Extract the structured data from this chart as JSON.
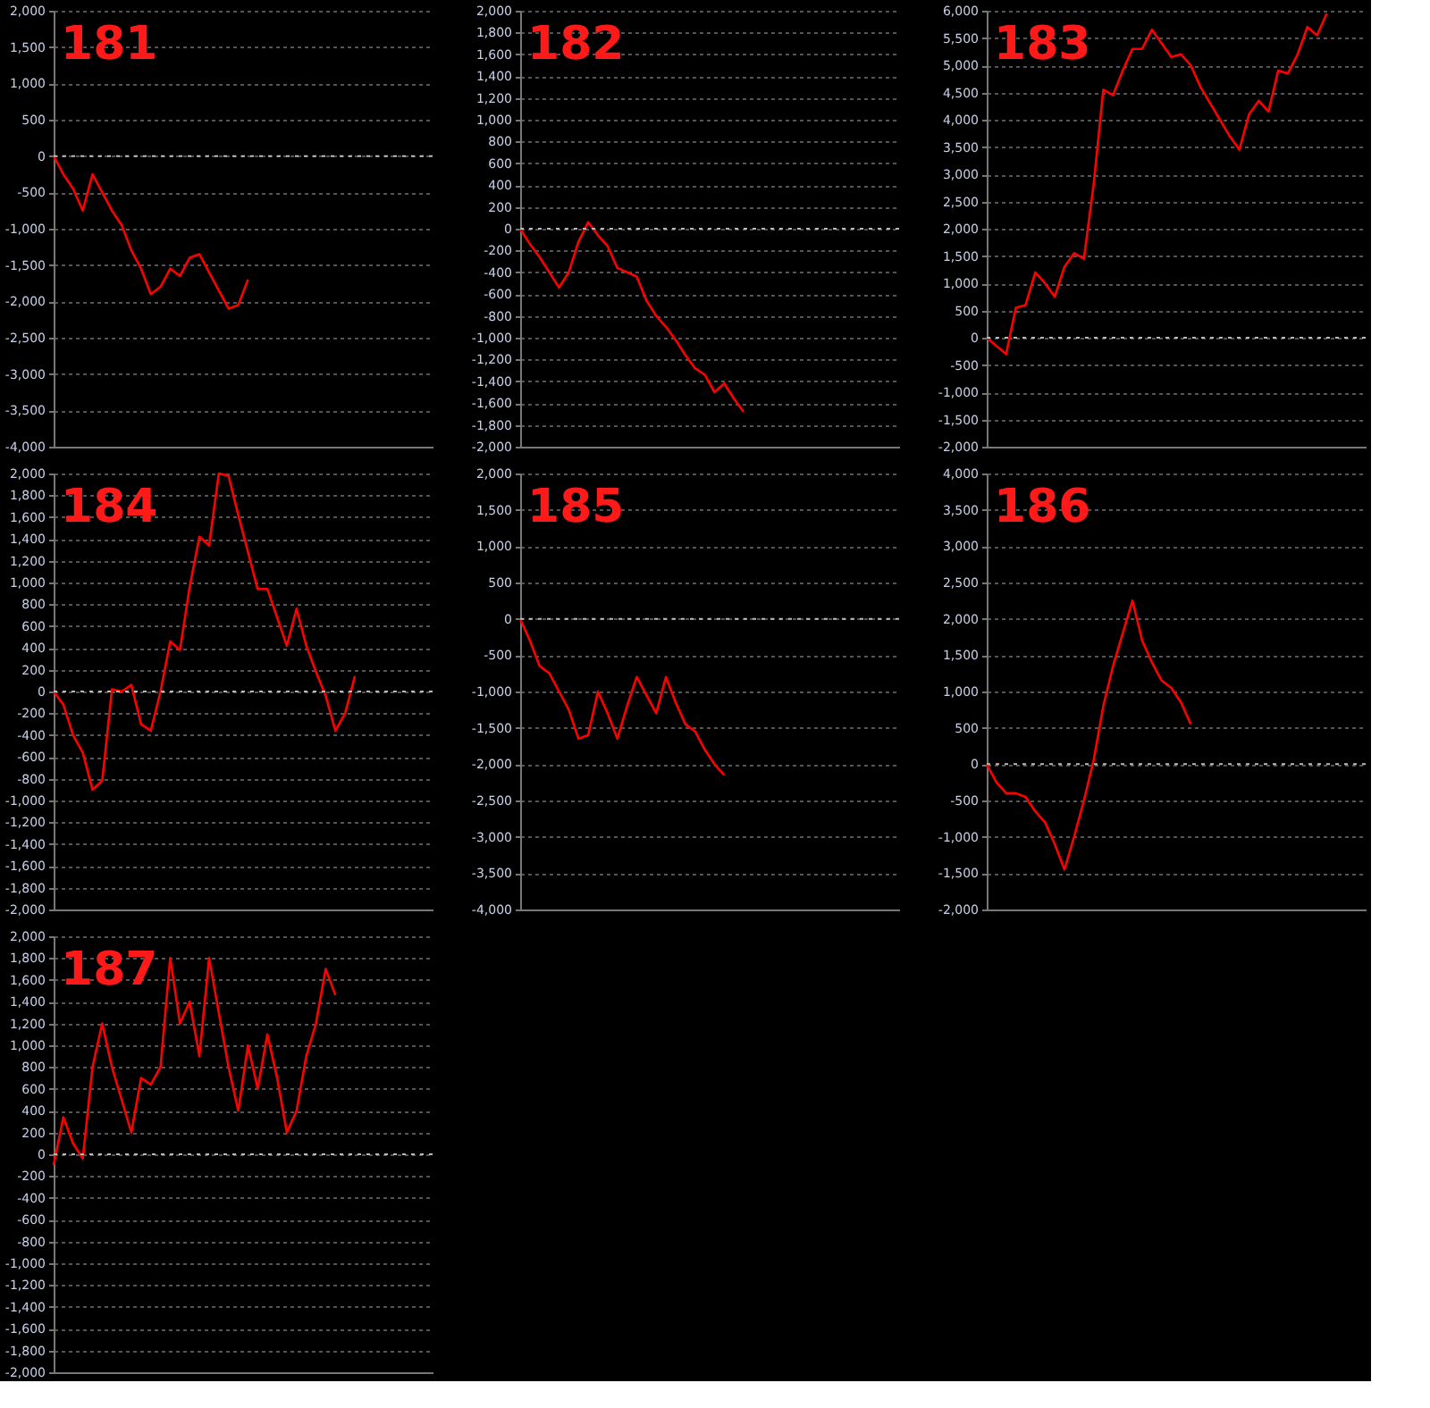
{
  "chart_data": [
    {
      "type": "line",
      "title": "181",
      "tick_labels": "y",
      "grid": "y",
      "marker": "none",
      "line_style": "solid",
      "ylim": [
        -4000,
        2000
      ],
      "yticks": [
        {
          "value": -4000,
          "label": "-4,000"
        },
        {
          "value": -3500,
          "label": "-3,500"
        },
        {
          "value": -3000,
          "label": "-3,000"
        },
        {
          "value": -2500,
          "label": "-2,500"
        },
        {
          "value": -2000,
          "label": "-2,000"
        },
        {
          "value": -1500,
          "label": "-1,500"
        },
        {
          "value": -1000,
          "label": "-1,000"
        },
        {
          "value": -500,
          "label": "-500"
        },
        0,
        500,
        {
          "value": 1000,
          "label": "1,000"
        },
        {
          "value": 1500,
          "label": "1,500"
        },
        {
          "value": 2000,
          "label": "2,000"
        }
      ],
      "ref_lines": [
        {
          "axis": "y",
          "value": 0,
          "color": "#bbbbbb",
          "line_style": "dotted"
        }
      ],
      "categories": [
        null,
        null,
        null,
        null,
        null,
        null,
        null,
        null,
        null,
        null,
        null,
        null,
        null,
        null,
        null,
        null,
        null,
        null,
        null,
        null,
        null,
        null,
        null,
        null,
        null,
        null,
        null,
        null,
        null,
        null,
        null,
        null,
        null,
        null,
        null,
        null,
        null,
        null,
        null,
        null
      ],
      "series": [
        {
          "color": "#ff0000",
          "values": [
            0,
            -250,
            -450,
            -750,
            -250,
            -500,
            -750,
            -950,
            -1300,
            -1550,
            -1900,
            -1800,
            -1550,
            -1650,
            -1400,
            -1350,
            -1600,
            -1850,
            -2100,
            -2050,
            -1700,
            null,
            null,
            null,
            null,
            null,
            null,
            null,
            null,
            null,
            null,
            null,
            null,
            null,
            null,
            null,
            null,
            null,
            null,
            null
          ]
        }
      ]
    },
    {
      "type": "line",
      "title": "182",
      "tick_labels": "y",
      "grid": "y",
      "marker": "none",
      "line_style": "solid",
      "ylim": [
        -2000,
        2000
      ],
      "yticks": [
        {
          "value": -2000,
          "label": "-2,000"
        },
        {
          "value": -1800,
          "label": "-1,800"
        },
        {
          "value": -1600,
          "label": "-1,600"
        },
        {
          "value": -1400,
          "label": "-1,400"
        },
        {
          "value": -1200,
          "label": "-1,200"
        },
        {
          "value": -1000,
          "label": "-1,000"
        },
        {
          "value": -800,
          "label": "-800"
        },
        {
          "value": -600,
          "label": "-600"
        },
        {
          "value": -400,
          "label": "-400"
        },
        {
          "value": -200,
          "label": "-200"
        },
        0,
        200,
        400,
        600,
        800,
        {
          "value": 1000,
          "label": "1,000"
        },
        {
          "value": 1200,
          "label": "1,200"
        },
        {
          "value": 1400,
          "label": "1,400"
        },
        {
          "value": 1600,
          "label": "1,600"
        },
        {
          "value": 1800,
          "label": "1,800"
        },
        {
          "value": 2000,
          "label": "2,000"
        }
      ],
      "ref_lines": [
        {
          "axis": "y",
          "value": 0,
          "color": "#bbbbbb",
          "line_style": "dotted"
        }
      ],
      "categories": [
        null,
        null,
        null,
        null,
        null,
        null,
        null,
        null,
        null,
        null,
        null,
        null,
        null,
        null,
        null,
        null,
        null,
        null,
        null,
        null,
        null,
        null,
        null,
        null,
        null,
        null,
        null,
        null,
        null,
        null,
        null,
        null,
        null,
        null,
        null,
        null,
        null,
        null,
        null,
        null
      ],
      "series": [
        {
          "color": "#ff0000",
          "values": [
            0,
            -140,
            -260,
            -400,
            -540,
            -400,
            -120,
            60,
            -60,
            -160,
            -360,
            -400,
            -440,
            -660,
            -800,
            -900,
            -1020,
            -1160,
            -1280,
            -1340,
            -1500,
            -1420,
            -1560,
            -1680,
            null,
            null,
            null,
            null,
            null,
            null,
            null,
            null,
            null,
            null,
            null,
            null,
            null,
            null,
            null,
            null
          ]
        }
      ]
    },
    {
      "type": "line",
      "title": "183",
      "tick_labels": "y",
      "grid": "y",
      "marker": "none",
      "line_style": "solid",
      "ylim": [
        -2000,
        6000
      ],
      "yticks": [
        {
          "value": -2000,
          "label": "-2,000"
        },
        {
          "value": -1500,
          "label": "-1,500"
        },
        {
          "value": -1000,
          "label": "-1,000"
        },
        {
          "value": -500,
          "label": "-500"
        },
        0,
        500,
        {
          "value": 1000,
          "label": "1,000"
        },
        {
          "value": 1500,
          "label": "1,500"
        },
        {
          "value": 2000,
          "label": "2,000"
        },
        {
          "value": 2500,
          "label": "2,500"
        },
        {
          "value": 3000,
          "label": "3,000"
        },
        {
          "value": 3500,
          "label": "3,500"
        },
        {
          "value": 4000,
          "label": "4,000"
        },
        {
          "value": 4500,
          "label": "4,500"
        },
        {
          "value": 5000,
          "label": "5,000"
        },
        {
          "value": 5500,
          "label": "5,500"
        },
        {
          "value": 6000,
          "label": "6,000"
        }
      ],
      "ref_lines": [
        {
          "axis": "y",
          "value": 0,
          "color": "#bbbbbb",
          "line_style": "dotted"
        }
      ],
      "categories": [
        null,
        null,
        null,
        null,
        null,
        null,
        null,
        null,
        null,
        null,
        null,
        null,
        null,
        null,
        null,
        null,
        null,
        null,
        null,
        null,
        null,
        null,
        null,
        null,
        null,
        null,
        null,
        null,
        null,
        null,
        null,
        null,
        null,
        null,
        null,
        null,
        null,
        null,
        null,
        null
      ],
      "series": [
        {
          "color": "#ff0000",
          "values": [
            0,
            -150,
            -300,
            550,
            600,
            1200,
            1000,
            750,
            1300,
            1550,
            1450,
            2800,
            4550,
            4450,
            4900,
            5300,
            5300,
            5650,
            5400,
            5150,
            5200,
            5000,
            4600,
            4300,
            4000,
            3700,
            3450,
            4100,
            4350,
            4150,
            4900,
            4850,
            5200,
            5700,
            5550,
            5950,
            null,
            null,
            null,
            null
          ]
        }
      ]
    },
    {
      "type": "line",
      "title": "184",
      "tick_labels": "y",
      "grid": "y",
      "marker": "none",
      "line_style": "solid",
      "ylim": [
        -2000,
        2000
      ],
      "yticks": [
        {
          "value": -2000,
          "label": "-2,000"
        },
        {
          "value": -1800,
          "label": "-1,800"
        },
        {
          "value": -1600,
          "label": "-1,600"
        },
        {
          "value": -1400,
          "label": "-1,400"
        },
        {
          "value": -1200,
          "label": "-1,200"
        },
        {
          "value": -1000,
          "label": "-1,000"
        },
        {
          "value": -800,
          "label": "-800"
        },
        {
          "value": -600,
          "label": "-600"
        },
        {
          "value": -400,
          "label": "-400"
        },
        {
          "value": -200,
          "label": "-200"
        },
        0,
        200,
        400,
        600,
        800,
        {
          "value": 1000,
          "label": "1,000"
        },
        {
          "value": 1200,
          "label": "1,200"
        },
        {
          "value": 1400,
          "label": "1,400"
        },
        {
          "value": 1600,
          "label": "1,600"
        },
        {
          "value": 1800,
          "label": "1,800"
        },
        {
          "value": 2000,
          "label": "2,000"
        }
      ],
      "ref_lines": [
        {
          "axis": "y",
          "value": 0,
          "color": "#bbbbbb",
          "line_style": "dotted"
        }
      ],
      "categories": [
        null,
        null,
        null,
        null,
        null,
        null,
        null,
        null,
        null,
        null,
        null,
        null,
        null,
        null,
        null,
        null,
        null,
        null,
        null,
        null,
        null,
        null,
        null,
        null,
        null,
        null,
        null,
        null,
        null,
        null,
        null,
        null,
        null,
        null,
        null,
        null,
        null,
        null,
        null,
        null
      ],
      "series": [
        {
          "color": "#ff0000",
          "values": [
            0,
            -120,
            -400,
            -560,
            -900,
            -820,
            20,
            0,
            60,
            -300,
            -360,
            0,
            460,
            380,
            960,
            1420,
            1340,
            2000,
            1980,
            1620,
            1280,
            940,
            940,
            680,
            420,
            760,
            420,
            180,
            -40,
            -360,
            -200,
            140,
            null,
            null,
            null,
            null,
            null,
            null,
            null,
            null
          ]
        }
      ]
    },
    {
      "type": "line",
      "title": "185",
      "tick_labels": "y",
      "grid": "y",
      "marker": "none",
      "line_style": "solid",
      "ylim": [
        -4000,
        2000
      ],
      "yticks": [
        {
          "value": -4000,
          "label": "-4,000"
        },
        {
          "value": -3500,
          "label": "-3,500"
        },
        {
          "value": -3000,
          "label": "-3,000"
        },
        {
          "value": -2500,
          "label": "-2,500"
        },
        {
          "value": -2000,
          "label": "-2,000"
        },
        {
          "value": -1500,
          "label": "-1,500"
        },
        {
          "value": -1000,
          "label": "-1,000"
        },
        {
          "value": -500,
          "label": "-500"
        },
        0,
        500,
        {
          "value": 1000,
          "label": "1,000"
        },
        {
          "value": 1500,
          "label": "1,500"
        },
        {
          "value": 2000,
          "label": "2,000"
        }
      ],
      "ref_lines": [
        {
          "axis": "y",
          "value": 0,
          "color": "#bbbbbb",
          "line_style": "dotted"
        }
      ],
      "categories": [
        null,
        null,
        null,
        null,
        null,
        null,
        null,
        null,
        null,
        null,
        null,
        null,
        null,
        null,
        null,
        null,
        null,
        null,
        null,
        null,
        null,
        null,
        null,
        null,
        null,
        null,
        null,
        null,
        null,
        null,
        null,
        null,
        null,
        null,
        null,
        null,
        null,
        null,
        null,
        null
      ],
      "series": [
        {
          "color": "#ff0000",
          "values": [
            0,
            -300,
            -650,
            -750,
            -1000,
            -1250,
            -1650,
            -1600,
            -1000,
            -1300,
            -1650,
            -1200,
            -800,
            -1050,
            -1300,
            -800,
            -1150,
            -1450,
            -1550,
            -1800,
            -2000,
            -2150,
            null,
            null,
            null,
            null,
            null,
            null,
            null,
            null,
            null,
            null,
            null,
            null,
            null,
            null,
            null,
            null,
            null,
            null
          ]
        }
      ]
    },
    {
      "type": "line",
      "title": "186",
      "tick_labels": "y",
      "grid": "y",
      "marker": "none",
      "line_style": "solid",
      "ylim": [
        -2000,
        4000
      ],
      "yticks": [
        {
          "value": -2000,
          "label": "-2,000"
        },
        {
          "value": -1500,
          "label": "-1,500"
        },
        {
          "value": -1000,
          "label": "-1,000"
        },
        {
          "value": -500,
          "label": "-500"
        },
        0,
        500,
        {
          "value": 1000,
          "label": "1,000"
        },
        {
          "value": 1500,
          "label": "1,500"
        },
        {
          "value": 2000,
          "label": "2,000"
        },
        {
          "value": 2500,
          "label": "2,500"
        },
        {
          "value": 3000,
          "label": "3,000"
        },
        {
          "value": 3500,
          "label": "3,500"
        },
        {
          "value": 4000,
          "label": "4,000"
        }
      ],
      "ref_lines": [
        {
          "axis": "y",
          "value": 0,
          "color": "#bbbbbb",
          "line_style": "dotted"
        }
      ],
      "categories": [
        null,
        null,
        null,
        null,
        null,
        null,
        null,
        null,
        null,
        null,
        null,
        null,
        null,
        null,
        null,
        null,
        null,
        null,
        null,
        null,
        null,
        null,
        null,
        null,
        null,
        null,
        null,
        null,
        null,
        null,
        null,
        null,
        null,
        null,
        null,
        null,
        null,
        null,
        null,
        null
      ],
      "series": [
        {
          "color": "#ff0000",
          "values": [
            0,
            -250,
            -400,
            -400,
            -450,
            -650,
            -800,
            -1100,
            -1450,
            -1000,
            -500,
            50,
            800,
            1350,
            1800,
            2250,
            1700,
            1400,
            1150,
            1050,
            850,
            550,
            null,
            null,
            null,
            null,
            null,
            null,
            null,
            null,
            null,
            null,
            null,
            null,
            null,
            null,
            null,
            null,
            null,
            null
          ]
        }
      ]
    },
    {
      "type": "line",
      "title": "187",
      "tick_labels": "y",
      "grid": "y",
      "marker": "none",
      "line_style": "solid",
      "ylim": [
        -2000,
        2000
      ],
      "yticks": [
        {
          "value": -2000,
          "label": "-2,000"
        },
        {
          "value": -1800,
          "label": "-1,800"
        },
        {
          "value": -1600,
          "label": "-1,600"
        },
        {
          "value": -1400,
          "label": "-1,400"
        },
        {
          "value": -1200,
          "label": "-1,200"
        },
        {
          "value": -1000,
          "label": "-1,000"
        },
        {
          "value": -800,
          "label": "-800"
        },
        {
          "value": -600,
          "label": "-600"
        },
        {
          "value": -400,
          "label": "-400"
        },
        {
          "value": -200,
          "label": "-200"
        },
        0,
        200,
        400,
        600,
        800,
        {
          "value": 1000,
          "label": "1,000"
        },
        {
          "value": 1200,
          "label": "1,200"
        },
        {
          "value": 1400,
          "label": "1,400"
        },
        {
          "value": 1600,
          "label": "1,600"
        },
        {
          "value": 1800,
          "label": "1,800"
        },
        {
          "value": 2000,
          "label": "2,000"
        }
      ],
      "ref_lines": [
        {
          "axis": "y",
          "value": 0,
          "color": "#bbbbbb",
          "line_style": "dotted"
        }
      ],
      "categories": [
        null,
        null,
        null,
        null,
        null,
        null,
        null,
        null,
        null,
        null,
        null,
        null,
        null,
        null,
        null,
        null,
        null,
        null,
        null,
        null,
        null,
        null,
        null,
        null,
        null,
        null,
        null,
        null,
        null,
        null,
        null,
        null,
        null,
        null,
        null,
        null,
        null,
        null,
        null,
        null
      ],
      "series": [
        {
          "color": "#ff0000",
          "values": [
            -100,
            340,
            100,
            -40,
            800,
            1200,
            800,
            500,
            200,
            700,
            640,
            800,
            1800,
            1200,
            1400,
            900,
            1800,
            1300,
            800,
            400,
            1000,
            600,
            1100,
            700,
            200,
            400,
            900,
            1200,
            1700,
            1460,
            null,
            null,
            null,
            null,
            null,
            null,
            null,
            null,
            null,
            null
          ]
        }
      ]
    }
  ]
}
